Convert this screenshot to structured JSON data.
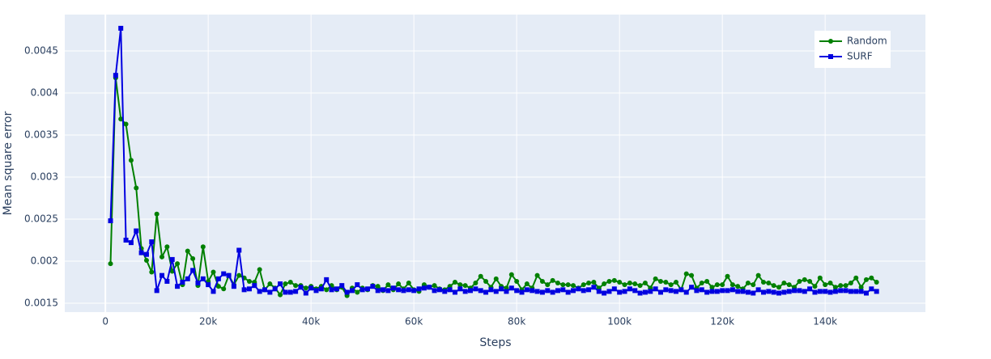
{
  "chart_data": {
    "type": "line",
    "xlabel": "Steps",
    "ylabel": "Mean square error",
    "x": [
      1000,
      2000,
      3000,
      4000,
      5000,
      6000,
      7000,
      8000,
      9000,
      10000,
      11000,
      12000,
      13000,
      14000,
      15000,
      16000,
      17000,
      18000,
      19000,
      20000,
      21000,
      22000,
      23000,
      24000,
      25000,
      26000,
      27000,
      28000,
      29000,
      30000,
      31000,
      32000,
      33000,
      34000,
      35000,
      36000,
      37000,
      38000,
      39000,
      40000,
      41000,
      42000,
      43000,
      44000,
      45000,
      46000,
      47000,
      48000,
      49000,
      50000,
      51000,
      52000,
      53000,
      54000,
      55000,
      56000,
      57000,
      58000,
      59000,
      60000,
      61000,
      62000,
      63000,
      64000,
      65000,
      66000,
      67000,
      68000,
      69000,
      70000,
      71000,
      72000,
      73000,
      74000,
      75000,
      76000,
      77000,
      78000,
      79000,
      80000,
      81000,
      82000,
      83000,
      84000,
      85000,
      86000,
      87000,
      88000,
      89000,
      90000,
      91000,
      92000,
      93000,
      94000,
      95000,
      96000,
      97000,
      98000,
      99000,
      100000,
      101000,
      102000,
      103000,
      104000,
      105000,
      106000,
      107000,
      108000,
      109000,
      110000,
      111000,
      112000,
      113000,
      114000,
      115000,
      116000,
      117000,
      118000,
      119000,
      120000,
      121000,
      122000,
      123000,
      124000,
      125000,
      126000,
      127000,
      128000,
      129000,
      130000,
      131000,
      132000,
      133000,
      134000,
      135000,
      136000,
      137000,
      138000,
      139000,
      140000,
      141000,
      142000,
      143000,
      144000,
      145000,
      146000,
      147000,
      148000,
      149000,
      150000
    ],
    "series": [
      {
        "name": "Random",
        "color": "#008000",
        "marker": "circle",
        "values": [
          0.00197,
          0.00418,
          0.00369,
          0.00363,
          0.0032,
          0.00287,
          0.00215,
          0.00201,
          0.00187,
          0.00256,
          0.00205,
          0.00217,
          0.00188,
          0.00197,
          0.00172,
          0.00212,
          0.00203,
          0.00171,
          0.00217,
          0.00176,
          0.00187,
          0.0017,
          0.00167,
          0.00183,
          0.00172,
          0.00183,
          0.0018,
          0.00176,
          0.00175,
          0.0019,
          0.00166,
          0.00173,
          0.00168,
          0.0016,
          0.00173,
          0.00175,
          0.00171,
          0.00171,
          0.00168,
          0.0017,
          0.00167,
          0.0017,
          0.00166,
          0.00171,
          0.00166,
          0.00169,
          0.00159,
          0.00168,
          0.00163,
          0.00168,
          0.00166,
          0.00171,
          0.0017,
          0.00165,
          0.00172,
          0.00166,
          0.00173,
          0.00167,
          0.00174,
          0.00166,
          0.00164,
          0.00172,
          0.00169,
          0.00171,
          0.00167,
          0.00166,
          0.0017,
          0.00175,
          0.00172,
          0.00171,
          0.00168,
          0.00174,
          0.00182,
          0.00176,
          0.00169,
          0.00179,
          0.0017,
          0.00168,
          0.00184,
          0.00176,
          0.00166,
          0.00173,
          0.00168,
          0.00183,
          0.00176,
          0.00172,
          0.00177,
          0.00174,
          0.00172,
          0.00172,
          0.00171,
          0.00168,
          0.00172,
          0.00174,
          0.00175,
          0.00168,
          0.00173,
          0.00176,
          0.00177,
          0.00175,
          0.00172,
          0.00174,
          0.00173,
          0.00171,
          0.00174,
          0.00168,
          0.00179,
          0.00176,
          0.00175,
          0.00172,
          0.00175,
          0.00166,
          0.00185,
          0.00183,
          0.00168,
          0.00174,
          0.00176,
          0.00169,
          0.00172,
          0.00172,
          0.00182,
          0.00172,
          0.0017,
          0.00167,
          0.00174,
          0.00172,
          0.00183,
          0.00175,
          0.00174,
          0.00171,
          0.00169,
          0.00174,
          0.00172,
          0.00169,
          0.00176,
          0.00178,
          0.00176,
          0.0017,
          0.0018,
          0.00172,
          0.00174,
          0.00169,
          0.00171,
          0.00171,
          0.00174,
          0.0018,
          0.00169,
          0.00178,
          0.0018,
          0.00175
        ]
      },
      {
        "name": "SURF",
        "color": "#0000e0",
        "marker": "square",
        "values": [
          0.00248,
          0.00421,
          0.00477,
          0.00225,
          0.00222,
          0.00236,
          0.0021,
          0.00208,
          0.00223,
          0.00165,
          0.00183,
          0.00176,
          0.00202,
          0.0017,
          0.00175,
          0.00179,
          0.00189,
          0.00174,
          0.00179,
          0.00172,
          0.00164,
          0.00179,
          0.00185,
          0.00183,
          0.0017,
          0.00213,
          0.00166,
          0.00167,
          0.00171,
          0.00164,
          0.00166,
          0.00163,
          0.00167,
          0.00173,
          0.00163,
          0.00163,
          0.00164,
          0.00169,
          0.00162,
          0.00168,
          0.00165,
          0.00167,
          0.00178,
          0.00166,
          0.00167,
          0.00171,
          0.00163,
          0.00165,
          0.00172,
          0.00166,
          0.00167,
          0.0017,
          0.00165,
          0.00166,
          0.00165,
          0.00168,
          0.00166,
          0.00165,
          0.00166,
          0.00165,
          0.00167,
          0.00168,
          0.00169,
          0.00165,
          0.00166,
          0.00164,
          0.00166,
          0.00163,
          0.00167,
          0.00164,
          0.00165,
          0.00167,
          0.00165,
          0.00163,
          0.00166,
          0.00164,
          0.00167,
          0.00164,
          0.00168,
          0.00165,
          0.00163,
          0.00166,
          0.00165,
          0.00164,
          0.00163,
          0.00165,
          0.00163,
          0.00165,
          0.00166,
          0.00163,
          0.00165,
          0.00167,
          0.00165,
          0.00166,
          0.00169,
          0.00164,
          0.00162,
          0.00164,
          0.00167,
          0.00163,
          0.00164,
          0.00167,
          0.00165,
          0.00162,
          0.00163,
          0.00164,
          0.00167,
          0.00163,
          0.00166,
          0.00165,
          0.00164,
          0.00166,
          0.00163,
          0.00169,
          0.00165,
          0.00166,
          0.00163,
          0.00164,
          0.00164,
          0.00165,
          0.00165,
          0.00166,
          0.00164,
          0.00164,
          0.00163,
          0.00162,
          0.00166,
          0.00163,
          0.00164,
          0.00163,
          0.00162,
          0.00163,
          0.00164,
          0.00165,
          0.00165,
          0.00164,
          0.00167,
          0.00163,
          0.00164,
          0.00164,
          0.00163,
          0.00164,
          0.00165,
          0.00165,
          0.00164,
          0.00164,
          0.00164,
          0.00162,
          0.00167,
          0.00164
        ]
      }
    ],
    "xlim": [
      -7900,
      159500
    ],
    "ylim": [
      0.001394,
      0.004933
    ],
    "xticks": [
      0,
      {
        "value": 20000,
        "label": "20k"
      },
      {
        "value": 40000,
        "label": "40k"
      },
      {
        "value": 60000,
        "label": "60k"
      },
      {
        "value": 80000,
        "label": "80k"
      },
      {
        "value": 100000,
        "label": "100k"
      },
      {
        "value": 120000,
        "label": "120k"
      },
      {
        "value": 140000,
        "label": "140k"
      }
    ],
    "yticks": [
      0.0015,
      0.002,
      0.0025,
      0.003,
      0.0035,
      0.004,
      0.0045
    ],
    "grid": true,
    "legend": "upper right"
  }
}
